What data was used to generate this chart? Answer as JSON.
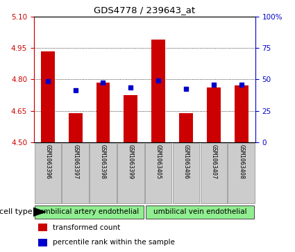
{
  "title": "GDS4778 / 239643_at",
  "samples": [
    "GSM1063396",
    "GSM1063397",
    "GSM1063398",
    "GSM1063399",
    "GSM1063405",
    "GSM1063406",
    "GSM1063407",
    "GSM1063408"
  ],
  "red_values": [
    4.935,
    4.638,
    4.783,
    4.726,
    4.988,
    4.638,
    4.76,
    4.77
  ],
  "blue_values": [
    4.79,
    4.748,
    4.783,
    4.76,
    4.793,
    4.755,
    4.775,
    4.775
  ],
  "ylim_left": [
    4.5,
    5.1
  ],
  "ylim_right": [
    0,
    100
  ],
  "yticks_left": [
    4.5,
    4.65,
    4.8,
    4.95,
    5.1
  ],
  "yticks_right": [
    0,
    25,
    50,
    75,
    100
  ],
  "ytick_labels_right": [
    "0",
    "25",
    "50",
    "75",
    "100%"
  ],
  "groups": [
    {
      "label": "umbilical artery endothelial",
      "n": 4,
      "color": "#90ee90"
    },
    {
      "label": "umbilical vein endothelial",
      "n": 4,
      "color": "#90ee90"
    }
  ],
  "cell_type_label": "cell type",
  "left_axis_color": "#cc0000",
  "right_axis_color": "#0000cc",
  "bar_color": "#cc0000",
  "dot_color": "#0000cc",
  "bar_width": 0.5,
  "dot_size": 22,
  "legend_red": "transformed count",
  "legend_blue": "percentile rank within the sample"
}
